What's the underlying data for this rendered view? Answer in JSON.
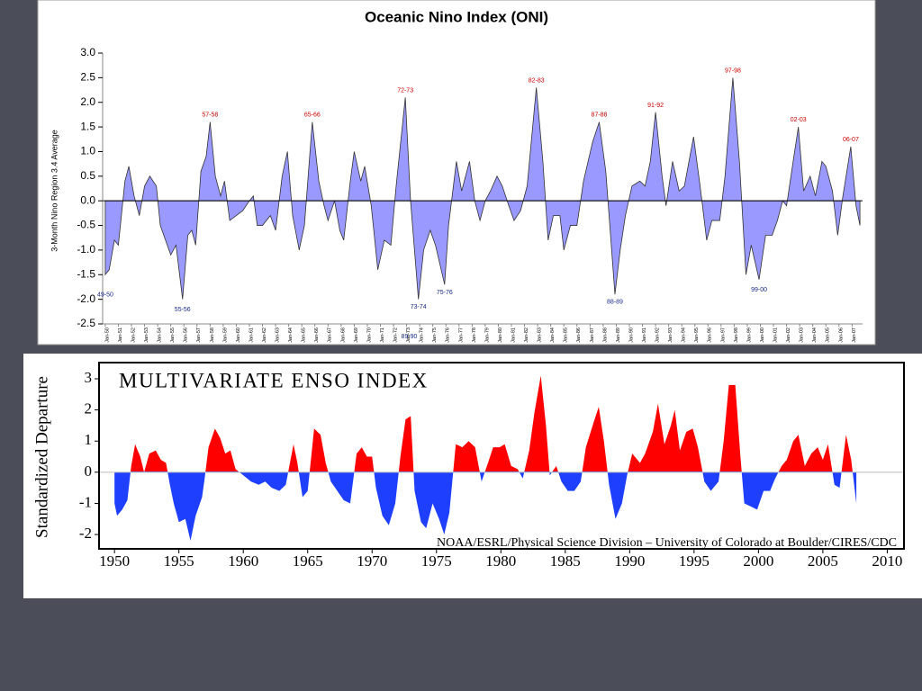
{
  "chart_data": [
    {
      "type": "area",
      "title": "Oceanic Nino Index (ONI)",
      "y_label": "3-Month Nino Region 3.4 Average",
      "fill_color": "#9999ff",
      "line_color": "#333333",
      "xlim": [
        1949.8,
        2007.8
      ],
      "ylim": [
        -2.5,
        3.0
      ],
      "yticks": [
        {
          "value": 3,
          "label": "3.0"
        },
        2.5,
        {
          "value": 2,
          "label": "2.0"
        },
        1.5,
        {
          "value": 1,
          "label": "1.0"
        },
        0.5,
        {
          "value": 0,
          "label": "0.0"
        },
        -0.5,
        {
          "value": -1,
          "label": "-1.0"
        },
        -1.5,
        {
          "value": -2,
          "label": "-2.0"
        },
        -2.5
      ],
      "xticks": [
        {
          "value": 1950,
          "label": "Jan-50"
        },
        {
          "value": 1951,
          "label": "Jan-51"
        },
        {
          "value": 1952,
          "label": "Jan-52"
        },
        {
          "value": 1953,
          "label": "Jan-53"
        },
        {
          "value": 1954,
          "label": "Jan-54"
        },
        {
          "value": 1955,
          "label": "Jan-55"
        },
        {
          "value": 1956,
          "label": "Jan-56"
        },
        {
          "value": 1957,
          "label": "Jan-57"
        },
        {
          "value": 1958,
          "label": "Jan-58"
        },
        {
          "value": 1959,
          "label": "Jan-59"
        },
        {
          "value": 1960,
          "label": "Jan-60"
        },
        {
          "value": 1961,
          "label": "Jan-61"
        },
        {
          "value": 1962,
          "label": "Jan-62"
        },
        {
          "value": 1963,
          "label": "Jan-63"
        },
        {
          "value": 1964,
          "label": "Jan-64"
        },
        {
          "value": 1965,
          "label": "Jan-65"
        },
        {
          "value": 1966,
          "label": "Jan-66"
        },
        {
          "value": 1967,
          "label": "Jan-67"
        },
        {
          "value": 1968,
          "label": "Jan-68"
        },
        {
          "value": 1969,
          "label": "Jan-69"
        },
        {
          "value": 1970,
          "label": "Jan-70"
        },
        {
          "value": 1971,
          "label": "Jan-71"
        },
        {
          "value": 1972,
          "label": "Jan-72"
        },
        {
          "value": 1973,
          "label": "Jan-73"
        },
        {
          "value": 1974,
          "label": "Jan-74"
        },
        {
          "value": 1975,
          "label": "Jan-75"
        },
        {
          "value": 1976,
          "label": "Jan-76"
        },
        {
          "value": 1977,
          "label": "Jan-77"
        },
        {
          "value": 1978,
          "label": "Jan-78"
        },
        {
          "value": 1979,
          "label": "Jan-79"
        },
        {
          "value": 1980,
          "label": "Jan-80"
        },
        {
          "value": 1981,
          "label": "Jan-81"
        },
        {
          "value": 1982,
          "label": "Jan-82"
        },
        {
          "value": 1983,
          "label": "Jan-83"
        },
        {
          "value": 1984,
          "label": "Jan-84"
        },
        {
          "value": 1985,
          "label": "Jan-85"
        },
        {
          "value": 1986,
          "label": "Jan-86"
        },
        {
          "value": 1987,
          "label": "Jan-87"
        },
        {
          "value": 1988,
          "label": "Jan-88"
        },
        {
          "value": 1989,
          "label": "Jan-89"
        },
        {
          "value": 1990,
          "label": "Jan-90"
        },
        {
          "value": 1991,
          "label": "Jan-91"
        },
        {
          "value": 1992,
          "label": "Jan-92"
        },
        {
          "value": 1993,
          "label": "Jan-93"
        },
        {
          "value": 1994,
          "label": "Jan-94"
        },
        {
          "value": 1995,
          "label": "Jan-95"
        },
        {
          "value": 1996,
          "label": "Jan-96"
        },
        {
          "value": 1997,
          "label": "Jan-97"
        },
        {
          "value": 1998,
          "label": "Jan-98"
        },
        {
          "value": 1999,
          "label": "Jan-99"
        },
        {
          "value": 2000,
          "label": "Jan-00"
        },
        {
          "value": 2001,
          "label": "Jan-01"
        },
        {
          "value": 2002,
          "label": "Jan-02"
        },
        {
          "value": 2003,
          "label": "Jan-03"
        },
        {
          "value": 2004,
          "label": "Jan-04"
        },
        {
          "value": 2005,
          "label": "Jan-05"
        },
        {
          "value": 2006,
          "label": "Jan-06"
        },
        {
          "value": 2007,
          "label": "Jan-07"
        }
      ],
      "x": [
        1950.0,
        1950.3,
        1950.7,
        1951.0,
        1951.5,
        1951.8,
        1952.2,
        1952.6,
        1953.0,
        1953.4,
        1953.9,
        1954.2,
        1954.6,
        1955.0,
        1955.4,
        1955.9,
        1956.3,
        1956.6,
        1956.9,
        1957.3,
        1957.7,
        1958.0,
        1958.4,
        1958.8,
        1959.1,
        1959.5,
        1960.0,
        1960.5,
        1961.0,
        1961.3,
        1961.6,
        1962.0,
        1962.6,
        1963.0,
        1963.5,
        1963.9,
        1964.3,
        1964.8,
        1965.2,
        1965.8,
        1966.3,
        1966.7,
        1967.0,
        1967.5,
        1967.9,
        1968.2,
        1968.7,
        1969.0,
        1969.5,
        1969.8,
        1970.3,
        1970.8,
        1971.3,
        1971.8,
        1972.2,
        1972.9,
        1973.3,
        1973.9,
        1974.3,
        1974.8,
        1975.2,
        1975.9,
        1976.2,
        1976.8,
        1977.2,
        1977.8,
        1978.2,
        1978.6,
        1979.0,
        1979.4,
        1979.9,
        1980.3,
        1980.8,
        1981.2,
        1981.7,
        1982.2,
        1982.9,
        1983.4,
        1983.8,
        1984.2,
        1984.7,
        1985.0,
        1985.5,
        1986.0,
        1986.5,
        1987.2,
        1987.7,
        1988.2,
        1988.9,
        1989.3,
        1989.7,
        1990.2,
        1990.8,
        1991.2,
        1991.6,
        1992.0,
        1992.5,
        1992.8,
        1993.3,
        1993.8,
        1994.2,
        1994.9,
        1995.4,
        1995.9,
        1996.3,
        1996.9,
        1997.3,
        1997.9,
        1998.4,
        1998.9,
        1999.3,
        1999.9,
        2000.4,
        2000.9,
        2001.3,
        2001.7,
        2002.0,
        2002.5,
        2002.9,
        2003.3,
        2003.8,
        2004.2,
        2004.7,
        2005.0,
        2005.5,
        2005.9,
        2006.3,
        2006.9,
        2007.3,
        2007.6
      ],
      "values": [
        -1.5,
        -1.4,
        -0.8,
        -0.9,
        0.4,
        0.7,
        0.1,
        -0.3,
        0.3,
        0.5,
        0.3,
        -0.5,
        -0.8,
        -1.1,
        -0.9,
        -2.0,
        -0.7,
        -0.6,
        -0.9,
        0.6,
        0.9,
        1.6,
        0.5,
        0.1,
        0.4,
        -0.4,
        -0.3,
        -0.2,
        0.0,
        0.1,
        -0.5,
        -0.5,
        -0.3,
        -0.6,
        0.5,
        1.0,
        -0.3,
        -1.0,
        -0.5,
        1.6,
        0.4,
        -0.1,
        -0.4,
        0.0,
        -0.6,
        -0.8,
        0.4,
        1.0,
        0.4,
        0.7,
        -0.1,
        -1.4,
        -0.8,
        -0.9,
        0.3,
        2.1,
        0.0,
        -2.0,
        -1.0,
        -0.6,
        -0.9,
        -1.7,
        -0.5,
        0.8,
        0.2,
        0.8,
        0.0,
        -0.4,
        0.0,
        0.2,
        0.5,
        0.3,
        -0.1,
        -0.4,
        -0.2,
        0.3,
        2.3,
        0.8,
        -0.8,
        -0.3,
        -0.3,
        -1.0,
        -0.5,
        -0.5,
        0.4,
        1.2,
        1.6,
        0.6,
        -1.9,
        -1.0,
        -0.3,
        0.3,
        0.4,
        0.3,
        0.8,
        1.8,
        0.5,
        -0.1,
        0.8,
        0.2,
        0.3,
        1.3,
        0.3,
        -0.8,
        -0.4,
        -0.4,
        0.5,
        2.5,
        0.8,
        -1.5,
        -0.9,
        -1.6,
        -0.7,
        -0.7,
        -0.4,
        0.0,
        -0.1,
        0.8,
        1.5,
        0.2,
        0.5,
        0.1,
        0.8,
        0.7,
        0.2,
        -0.7,
        0.1,
        1.1,
        -0.1,
        -0.5
      ],
      "annotations": [
        {
          "label": "49-50",
          "x": 1950.0,
          "y": -1.8
        },
        {
          "label": "55-56",
          "x": 1955.9,
          "y": -2.1
        },
        {
          "label": "57-58",
          "x": 1958.0,
          "y": 1.65
        },
        {
          "label": "65-66",
          "x": 1965.8,
          "y": 1.65
        },
        {
          "label": "72-73",
          "x": 1972.9,
          "y": 2.15
        },
        {
          "label": "73-74",
          "x": 1973.9,
          "y": -2.05
        },
        {
          "label": "75-76",
          "x": 1975.9,
          "y": -1.75
        },
        {
          "label": "82-83",
          "x": 1982.9,
          "y": 2.35
        },
        {
          "label": "87-88",
          "x": 1987.7,
          "y": 1.65
        },
        {
          "label": "88-89",
          "x": 1988.9,
          "y": -1.95
        },
        {
          "label": "89-90",
          "x": 1973.2,
          "y": -2.65
        },
        {
          "label": "91-92",
          "x": 1992.0,
          "y": 1.85
        },
        {
          "label": "97-98",
          "x": 1997.9,
          "y": 2.55
        },
        {
          "label": "99-00",
          "x": 1999.9,
          "y": -1.7
        },
        {
          "label": "02-03",
          "x": 2002.9,
          "y": 1.55
        },
        {
          "label": "06-07",
          "x": 2006.9,
          "y": 1.15
        }
      ]
    },
    {
      "type": "area",
      "title": "MULTIVARIATE ENSO INDEX",
      "y_label": "Standardized Departure",
      "credit": "NOAA/ESRL/Physical Science Division – University of Colorado at Boulder/CIRES/CDC",
      "positive_color": "#ff0000",
      "negative_color": "#1f3fff",
      "xlim": [
        1948.8,
        2011.3
      ],
      "ylim": [
        -2.46,
        3.52
      ],
      "yticks": [
        3,
        2,
        1,
        0,
        -1,
        -2
      ],
      "xticks": [
        1950,
        1955,
        1960,
        1965,
        1970,
        1975,
        1980,
        1985,
        1990,
        1995,
        2000,
        2005,
        2010
      ],
      "x": [
        1950.0,
        1950.2,
        1950.6,
        1951.0,
        1951.3,
        1951.6,
        1952.0,
        1952.3,
        1952.7,
        1953.2,
        1953.6,
        1954.0,
        1954.3,
        1954.6,
        1955.0,
        1955.5,
        1955.9,
        1956.3,
        1956.8,
        1957.0,
        1957.3,
        1957.8,
        1958.2,
        1958.6,
        1959.0,
        1959.4,
        1960.0,
        1960.6,
        1961.2,
        1961.7,
        1962.2,
        1962.8,
        1963.3,
        1963.9,
        1964.2,
        1964.6,
        1965.0,
        1965.5,
        1966.0,
        1966.4,
        1966.8,
        1967.3,
        1967.8,
        1968.3,
        1968.8,
        1969.2,
        1969.6,
        1970.0,
        1970.3,
        1970.8,
        1971.3,
        1971.8,
        1972.2,
        1972.6,
        1973.0,
        1973.3,
        1973.8,
        1974.2,
        1974.7,
        1975.2,
        1975.6,
        1976.0,
        1976.5,
        1977.0,
        1977.5,
        1978.0,
        1978.5,
        1979.0,
        1979.4,
        1979.9,
        1980.3,
        1980.8,
        1981.3,
        1981.7,
        1982.2,
        1982.6,
        1983.1,
        1983.5,
        1983.8,
        1984.3,
        1984.7,
        1985.2,
        1985.7,
        1986.2,
        1986.6,
        1987.2,
        1987.6,
        1988.0,
        1988.4,
        1988.9,
        1989.4,
        1989.8,
        1990.2,
        1990.8,
        1991.2,
        1991.8,
        1992.2,
        1992.7,
        1993.2,
        1993.5,
        1993.9,
        1994.4,
        1994.9,
        1995.3,
        1995.8,
        1996.3,
        1996.9,
        1997.3,
        1997.7,
        1998.2,
        1998.6,
        1998.9,
        1999.4,
        1999.9,
        2000.4,
        2000.9,
        2001.3,
        2001.8,
        2002.2,
        2002.7,
        2003.1,
        2003.6,
        2004.1,
        2004.6,
        2005.0,
        2005.4,
        2005.9,
        2006.3,
        2006.8,
        2007.2,
        2007.6
      ],
      "values": [
        -1.0,
        -1.4,
        -1.2,
        -0.9,
        0.2,
        0.9,
        0.5,
        0.0,
        0.6,
        0.7,
        0.4,
        0.3,
        -0.4,
        -1.0,
        -1.6,
        -1.5,
        -2.2,
        -1.4,
        -0.8,
        -0.2,
        0.8,
        1.4,
        1.1,
        0.6,
        0.7,
        0.1,
        -0.1,
        -0.3,
        -0.4,
        -0.3,
        -0.5,
        -0.6,
        -0.4,
        0.9,
        0.3,
        -0.8,
        -0.6,
        1.4,
        1.2,
        0.3,
        -0.3,
        -0.6,
        -0.9,
        -1.0,
        0.6,
        0.8,
        0.5,
        0.5,
        -0.5,
        -1.4,
        -1.7,
        -1.0,
        0.5,
        1.7,
        1.8,
        -0.6,
        -1.6,
        -1.8,
        -1.0,
        -1.5,
        -2.0,
        -1.3,
        0.9,
        0.8,
        1.0,
        0.8,
        -0.3,
        0.3,
        0.8,
        0.8,
        0.9,
        0.2,
        0.1,
        -0.2,
        0.7,
        1.9,
        3.1,
        1.5,
        -0.1,
        0.2,
        -0.3,
        -0.6,
        -0.6,
        -0.3,
        0.8,
        1.6,
        2.1,
        1.0,
        -0.4,
        -1.5,
        -1.0,
        -0.1,
        0.6,
        0.3,
        0.6,
        1.3,
        2.2,
        0.9,
        1.5,
        2.0,
        0.7,
        1.3,
        1.4,
        0.8,
        -0.3,
        -0.6,
        -0.3,
        1.0,
        2.8,
        2.8,
        0.5,
        -1.0,
        -1.1,
        -1.2,
        -0.6,
        -0.6,
        -0.2,
        0.2,
        0.4,
        1.0,
        1.2,
        0.2,
        0.6,
        0.8,
        0.4,
        0.9,
        -0.4,
        -0.5,
        1.2,
        0.4,
        -1.0
      ]
    }
  ]
}
